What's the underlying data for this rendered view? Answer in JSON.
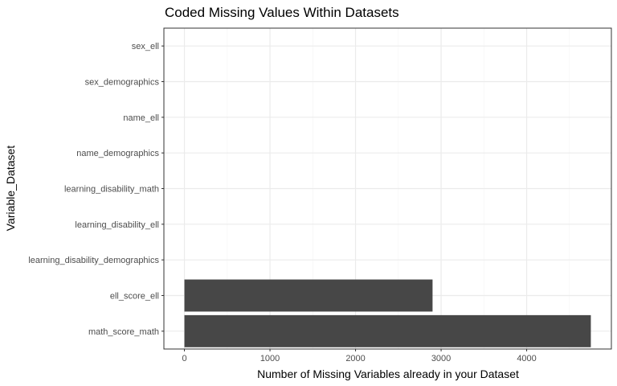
{
  "chart_data": {
    "type": "bar",
    "orientation": "horizontal",
    "title": "Coded Missing Values Within Datasets",
    "xlabel": "Number of Missing Variables already in your Dataset",
    "ylabel": "Variable_Dataset",
    "categories": [
      "math_score_math",
      "ell_score_ell",
      "learning_disability_demographics",
      "learning_disability_ell",
      "learning_disability_math",
      "name_demographics",
      "name_ell",
      "sex_demographics",
      "sex_ell"
    ],
    "values": [
      4750,
      2900,
      0,
      0,
      0,
      0,
      0,
      0,
      0
    ],
    "xticks": [
      0,
      1000,
      2000,
      3000,
      4000
    ],
    "xlim": [
      -240,
      4990
    ],
    "grid": true,
    "legend": "none",
    "bar_color": "#474747",
    "grid_major_color": "#ebebeb",
    "grid_minor_color": "#f5f5f5",
    "panel_border_color": "#333333"
  }
}
